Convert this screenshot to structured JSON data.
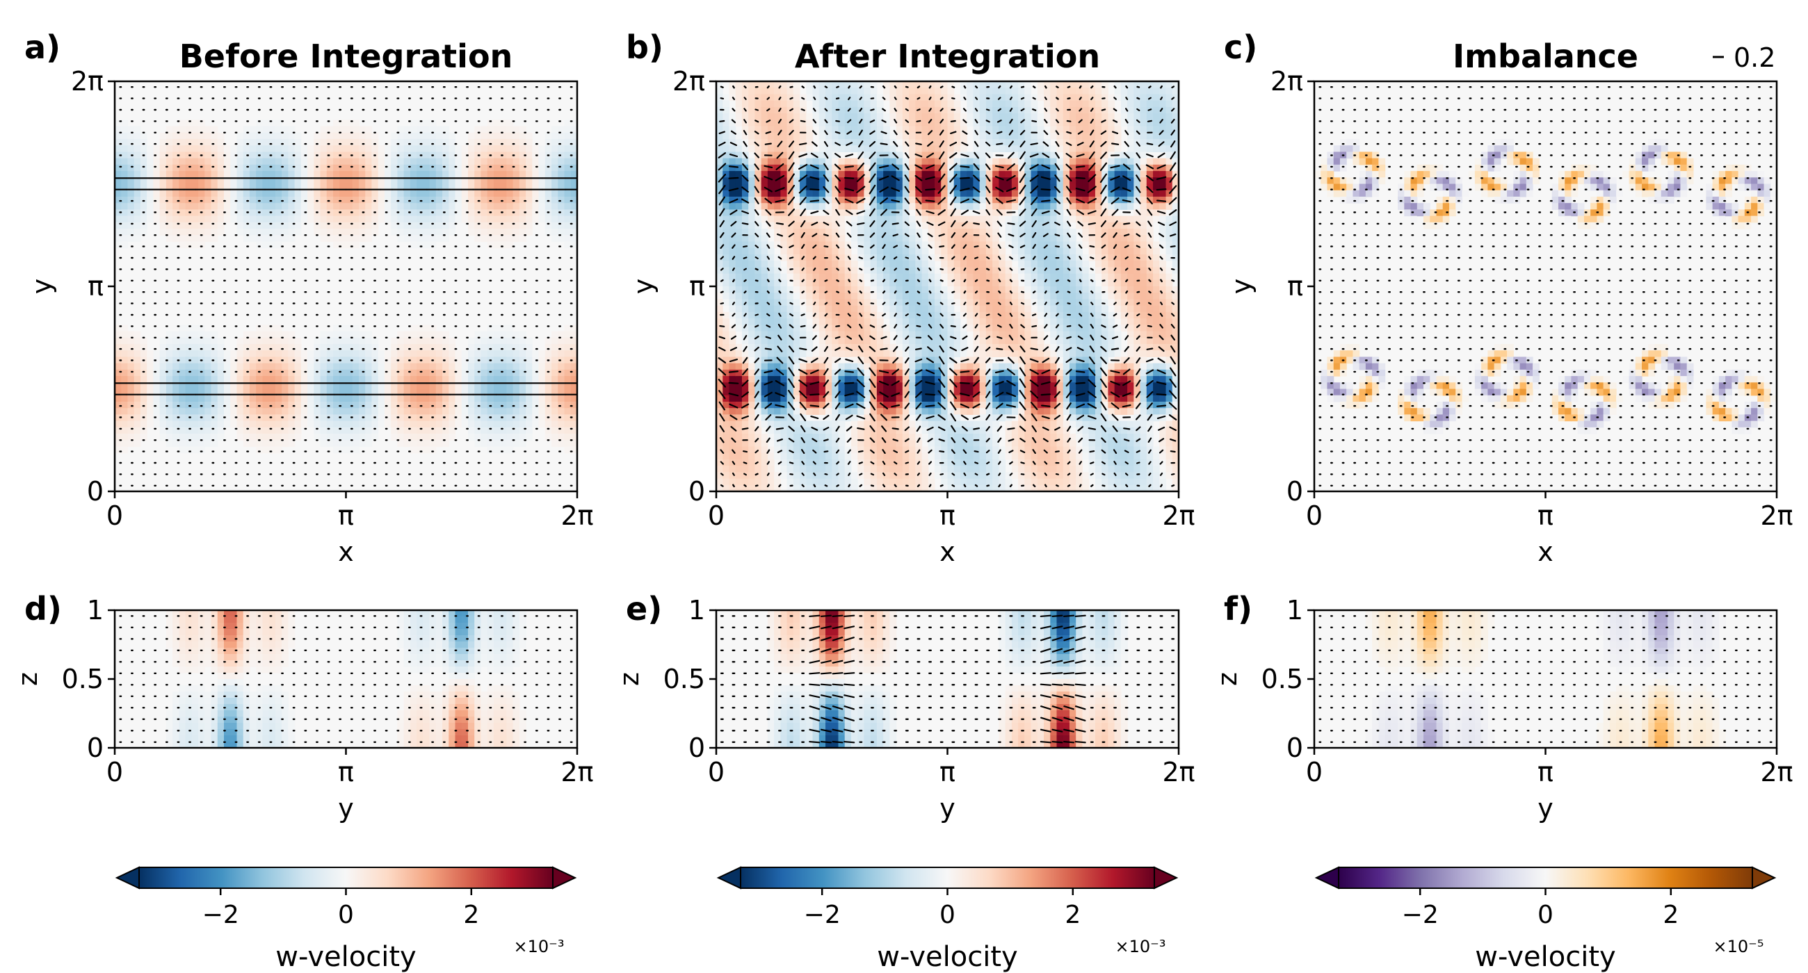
{
  "chart_data": [
    {
      "panel_label": "a)",
      "title": "Before Integration",
      "type": "heatmap",
      "field": "w-velocity",
      "colormap": "RdBu_r",
      "xlabel": "x",
      "ylabel": "y",
      "xticks": [
        "0",
        "π",
        "2π"
      ],
      "yticks": [
        "0",
        "π",
        "2π"
      ],
      "xlim": [
        0,
        6.2832
      ],
      "ylim": [
        0,
        6.2832
      ],
      "quiver": true,
      "pattern": {
        "kind": "jets",
        "bands_y": [
          1.57,
          4.71
        ],
        "modes_x": 3,
        "amplitude": 0.7,
        "jet_arrow_length": 1.0
      }
    },
    {
      "panel_label": "b)",
      "title": "After Integration",
      "type": "heatmap",
      "field": "w-velocity",
      "colormap": "RdBu_r",
      "xlabel": "x",
      "ylabel": "y",
      "xticks": [
        "0",
        "π",
        "2π"
      ],
      "yticks": [
        "0",
        "π",
        "2π"
      ],
      "xlim": [
        0,
        6.2832
      ],
      "ylim": [
        0,
        6.2832
      ],
      "quiver": true,
      "pattern": {
        "kind": "vortices",
        "bands_y": [
          1.57,
          4.71
        ],
        "modes_x": 3,
        "amplitude": 1.0
      }
    },
    {
      "panel_label": "c)",
      "title": "Imbalance",
      "type": "heatmap",
      "field": "w-velocity",
      "colormap": "PuOr_r",
      "xlabel": "x",
      "ylabel": "y",
      "xticks": [
        "0",
        "π",
        "2π"
      ],
      "yticks": [
        "0",
        "π",
        "2π"
      ],
      "xlim": [
        0,
        6.2832
      ],
      "ylim": [
        0,
        6.2832
      ],
      "quiver": true,
      "quiver_key": "0.2",
      "pattern": {
        "kind": "eddies",
        "bands_y": [
          1.57,
          4.71
        ],
        "modes_x": 3,
        "amplitude": 0.55
      }
    },
    {
      "panel_label": "d)",
      "type": "heatmap",
      "field": "w-velocity",
      "colormap": "RdBu_r",
      "xlabel": "y",
      "ylabel": "z",
      "xticks": [
        "0",
        "π",
        "2π"
      ],
      "yticks": [
        "0",
        "0.5",
        "1"
      ],
      "xlim": [
        0,
        6.2832
      ],
      "ylim": [
        0,
        1
      ],
      "quiver": true,
      "pattern": {
        "kind": "columns",
        "centers": [
          1.57,
          4.71
        ],
        "amplitude": 0.6
      }
    },
    {
      "panel_label": "e)",
      "type": "heatmap",
      "field": "w-velocity",
      "colormap": "RdBu_r",
      "xlabel": "y",
      "ylabel": "z",
      "xticks": [
        "0",
        "π",
        "2π"
      ],
      "yticks": [
        "0",
        "0.5",
        "1"
      ],
      "xlim": [
        0,
        6.2832
      ],
      "ylim": [
        0,
        1
      ],
      "quiver": true,
      "pattern": {
        "kind": "columns",
        "centers": [
          1.57,
          4.71
        ],
        "amplitude": 1.0
      }
    },
    {
      "panel_label": "f)",
      "type": "heatmap",
      "field": "w-velocity",
      "colormap": "PuOr_r",
      "xlabel": "y",
      "ylabel": "z",
      "xticks": [
        "0",
        "π",
        "2π"
      ],
      "yticks": [
        "0",
        "0.5",
        "1"
      ],
      "xlim": [
        0,
        6.2832
      ],
      "ylim": [
        0,
        1
      ],
      "quiver": true,
      "pattern": {
        "kind": "columns",
        "centers": [
          1.57,
          4.71
        ],
        "amplitude": 0.45
      }
    }
  ],
  "colorbars": [
    {
      "colormap": "RdBu_r",
      "ticks": [
        "−2",
        "0",
        "2"
      ],
      "label": "w-velocity",
      "exponent": "×10⁻³",
      "range": [
        -3.3,
        3.3
      ],
      "extend": "both"
    },
    {
      "colormap": "RdBu_r",
      "ticks": [
        "−2",
        "0",
        "2"
      ],
      "label": "w-velocity",
      "exponent": "×10⁻³",
      "range": [
        -3.3,
        3.3
      ],
      "extend": "both"
    },
    {
      "colormap": "PuOr_r",
      "ticks": [
        "−2",
        "0",
        "2"
      ],
      "label": "w-velocity",
      "exponent": "×10⁻⁵",
      "range": [
        -3.3,
        3.3
      ],
      "extend": "both"
    }
  ],
  "colormaps": {
    "RdBu_r": [
      "#053061",
      "#2166ac",
      "#4393c3",
      "#92c5de",
      "#d1e5f0",
      "#f7f7f7",
      "#fddbc7",
      "#f4a582",
      "#d6604d",
      "#b2182b",
      "#67001f"
    ],
    "PuOr_r": [
      "#2d004b",
      "#542788",
      "#8073ac",
      "#b2abd2",
      "#d8daeb",
      "#f7f7f7",
      "#fee0b6",
      "#fdb863",
      "#e08214",
      "#b35806",
      "#7f3b08"
    ]
  }
}
